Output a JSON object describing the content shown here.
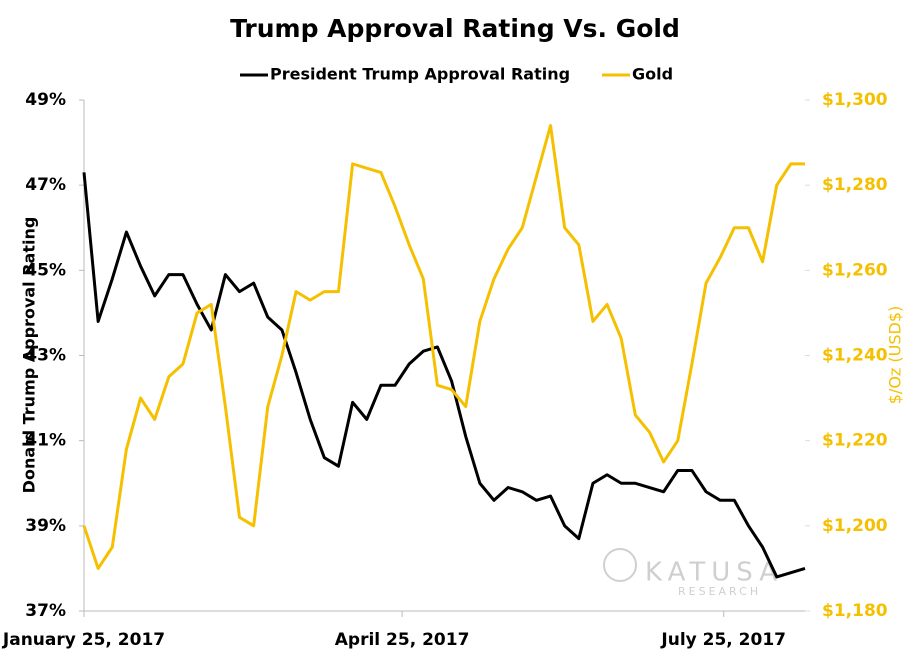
{
  "chart_data": {
    "type": "line",
    "title": "Trump Approval Rating Vs. Gold",
    "y_label": "Donald Trump Approval Rating",
    "y2_label": "$/Oz (USD$)",
    "watermark": {
      "name": "KATUSA",
      "sub": "RESEARCH"
    },
    "legend": "top",
    "x": [
      "2017-01-25",
      "2017-01-29",
      "2017-02-02",
      "2017-02-06",
      "2017-02-10",
      "2017-02-14",
      "2017-02-18",
      "2017-02-22",
      "2017-02-26",
      "2017-03-02",
      "2017-03-06",
      "2017-03-10",
      "2017-03-14",
      "2017-03-18",
      "2017-03-22",
      "2017-03-26",
      "2017-03-30",
      "2017-04-03",
      "2017-04-07",
      "2017-04-11",
      "2017-04-15",
      "2017-04-19",
      "2017-04-23",
      "2017-04-27",
      "2017-05-01",
      "2017-05-05",
      "2017-05-09",
      "2017-05-13",
      "2017-05-17",
      "2017-05-21",
      "2017-05-25",
      "2017-05-29",
      "2017-06-02",
      "2017-06-06",
      "2017-06-10",
      "2017-06-14",
      "2017-06-18",
      "2017-06-22",
      "2017-06-26",
      "2017-06-30",
      "2017-07-04",
      "2017-07-08",
      "2017-07-12",
      "2017-07-16",
      "2017-07-20",
      "2017-07-24",
      "2017-07-28",
      "2017-08-01",
      "2017-08-05",
      "2017-08-09",
      "2017-08-13",
      "2017-08-17"
    ],
    "xlim": [
      "2017-01-25",
      "2017-08-17"
    ],
    "xticks": [
      {
        "value": "2017-01-25",
        "label": "January 25, 2017"
      },
      {
        "value": "2017-04-25",
        "label": "April 25, 2017"
      },
      {
        "value": "2017-07-25",
        "label": "July 25, 2017"
      }
    ],
    "ylim": [
      37,
      49
    ],
    "yticks": [
      {
        "value": 37,
        "label": "37%"
      },
      {
        "value": 39,
        "label": "39%"
      },
      {
        "value": 41,
        "label": "41%"
      },
      {
        "value": 43,
        "label": "43%"
      },
      {
        "value": 45,
        "label": "45%"
      },
      {
        "value": 47,
        "label": "47%"
      },
      {
        "value": 49,
        "label": "49%"
      }
    ],
    "y2lim": [
      1180,
      1300
    ],
    "y2ticks": [
      {
        "value": 1180,
        "label": "$1,180"
      },
      {
        "value": 1200,
        "label": "$1,200"
      },
      {
        "value": 1220,
        "label": "$1,220"
      },
      {
        "value": 1240,
        "label": "$1,240"
      },
      {
        "value": 1260,
        "label": "$1,260"
      },
      {
        "value": 1280,
        "label": "$1,280"
      },
      {
        "value": 1300,
        "label": "$1,300"
      }
    ],
    "series": [
      {
        "name": "President Trump Approval Rating",
        "color": "#000000",
        "values": [
          47.3,
          43.8,
          44.8,
          45.9,
          45.1,
          44.4,
          44.9,
          44.9,
          44.2,
          43.6,
          44.9,
          44.5,
          44.7,
          43.9,
          43.6,
          42.6,
          41.5,
          40.6,
          40.4,
          41.9,
          41.5,
          42.3,
          42.3,
          42.8,
          43.1,
          43.2,
          42.4,
          41.1,
          40.0,
          39.6,
          39.9,
          39.8,
          39.6,
          39.7,
          39.0,
          38.7,
          40.0,
          40.2,
          40.0,
          40.0,
          39.9,
          39.8,
          40.3,
          40.3,
          39.8,
          39.6,
          39.6,
          39.0,
          38.5,
          37.8,
          37.9,
          38.0
        ]
      },
      {
        "name": "Gold",
        "color": "#f5c000",
        "axis": "y2",
        "values": [
          1200,
          1190,
          1195,
          1218,
          1230,
          1225,
          1235,
          1238,
          1250,
          1252,
          1228,
          1202,
          1200,
          1228,
          1240,
          1255,
          1253,
          1255,
          1255,
          1285,
          1284,
          1283,
          1275,
          1266,
          1258,
          1233,
          1232,
          1228,
          1248,
          1258,
          1265,
          1270,
          1282,
          1294,
          1270,
          1266,
          1248,
          1252,
          1244,
          1226,
          1222,
          1215,
          1220,
          1238,
          1257,
          1263,
          1270,
          1270,
          1262,
          1280,
          1285,
          1285
        ]
      }
    ]
  }
}
